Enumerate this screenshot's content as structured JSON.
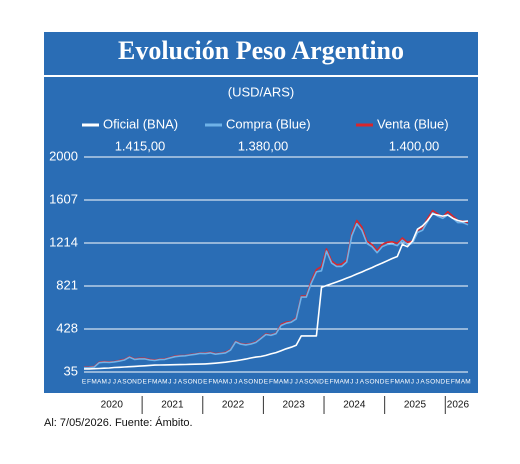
{
  "chart_data": {
    "type": "line",
    "title": "Evolución Peso Argentino",
    "subtitle": "(USD/ARS)",
    "footnote": "Al: 7/05/2026. Fuente: Ámbito.",
    "categories": [
      "E",
      "F",
      "M",
      "A",
      "M",
      "J",
      "J",
      "A",
      "S",
      "O",
      "N",
      "D",
      "E",
      "F",
      "M",
      "A",
      "M",
      "J",
      "J",
      "A",
      "S",
      "O",
      "N",
      "D",
      "E",
      "F",
      "M",
      "A",
      "M",
      "J",
      "J",
      "A",
      "S",
      "O",
      "N",
      "D",
      "E",
      "F",
      "M",
      "A",
      "M",
      "J",
      "J",
      "A",
      "S",
      "O",
      "N",
      "D",
      "E",
      "F",
      "M",
      "A",
      "M",
      "J",
      "J",
      "A",
      "S",
      "O",
      "N",
      "D",
      "E",
      "F",
      "M",
      "A",
      "M",
      "J",
      "J",
      "A",
      "S",
      "O",
      "N",
      "D",
      "E",
      "F",
      "M",
      "A",
      "M"
    ],
    "years": [
      "2020",
      "2021",
      "2022",
      "2023",
      "2024",
      "2025",
      "2026"
    ],
    "ylim": [
      35,
      2000
    ],
    "yticks": [
      35,
      428,
      821,
      1214,
      1607,
      2000
    ],
    "grid": true,
    "series": [
      {
        "name": "Venta (Blue)",
        "color": "#d9262c",
        "latest_label": "1.400,00",
        "values": [
          78,
          80,
          84,
          125,
          130,
          127,
          131,
          140,
          150,
          175,
          155,
          160,
          160,
          150,
          145,
          152,
          155,
          167,
          180,
          185,
          186,
          195,
          200,
          208,
          208,
          215,
          202,
          207,
          215,
          240,
          315,
          295,
          287,
          295,
          310,
          345,
          383,
          375,
          390,
          470,
          490,
          495,
          530,
          730,
          730,
          870,
          970,
          1000,
          1160,
          1050,
          1015,
          1020,
          1060,
          1300,
          1420,
          1360,
          1230,
          1200,
          1145,
          1200,
          1220,
          1225,
          1210,
          1260,
          1220,
          1230,
          1330,
          1350,
          1440,
          1510,
          1480,
          1450,
          1500,
          1460,
          1420,
          1415,
          1400
        ]
      },
      {
        "name": "Compra (Blue)",
        "color": "#6fb2e8",
        "latest_label": "1.380,00",
        "values": [
          74,
          76,
          80,
          120,
          125,
          123,
          127,
          135,
          145,
          170,
          150,
          155,
          155,
          145,
          140,
          148,
          150,
          163,
          175,
          180,
          183,
          190,
          197,
          205,
          203,
          210,
          198,
          203,
          210,
          235,
          310,
          290,
          283,
          290,
          305,
          340,
          378,
          370,
          385,
          460,
          480,
          490,
          520,
          720,
          720,
          850,
          950,
          960,
          1140,
          1030,
          1000,
          1000,
          1040,
          1280,
          1390,
          1330,
          1210,
          1180,
          1125,
          1180,
          1200,
          1205,
          1190,
          1240,
          1200,
          1210,
          1310,
          1330,
          1410,
          1490,
          1460,
          1440,
          1470,
          1440,
          1400,
          1400,
          1380
        ]
      },
      {
        "name": "Oficial (BNA)",
        "color": "#ffffff",
        "latest_label": "1.415,00",
        "values": [
          63,
          63,
          65,
          67,
          70,
          72,
          76,
          78,
          81,
          83,
          86,
          89,
          92,
          95,
          98,
          99,
          100,
          101,
          102,
          103,
          104,
          105,
          106,
          107,
          109,
          112,
          115,
          120,
          125,
          131,
          137,
          145,
          153,
          163,
          171,
          177,
          187,
          200,
          212,
          230,
          247,
          262,
          280,
          365,
          365,
          365,
          365,
          808,
          826,
          842,
          858,
          875,
          893,
          911,
          931,
          949,
          970,
          989,
          1011,
          1030,
          1051,
          1072,
          1091,
          1200,
          1180,
          1230,
          1340,
          1370,
          1420,
          1480,
          1470,
          1460,
          1470,
          1440,
          1420,
          1410,
          1415
        ]
      }
    ]
  }
}
